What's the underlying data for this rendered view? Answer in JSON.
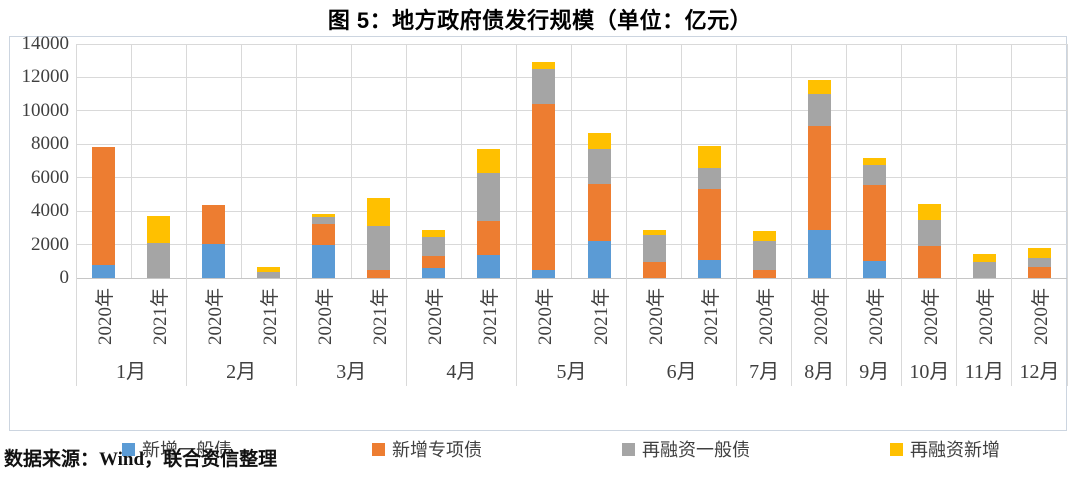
{
  "title": "图 5：地方政府债发行规模（单位：亿元）",
  "source": "数据来源：Wind，联合资信整理",
  "colors": {
    "blue": "#5B9BD5",
    "orange": "#ED7D31",
    "gray": "#A5A5A5",
    "yellow": "#FFC000",
    "gridline": "#d9d9d9",
    "axis_text": "#404040"
  },
  "chart_data": {
    "type": "bar",
    "stacked": true,
    "unit": "亿元",
    "title": "图 5：地方政府债发行规模（单位：亿元）",
    "ylim": [
      0,
      14000
    ],
    "y_ticks": [
      0,
      2000,
      4000,
      6000,
      8000,
      10000,
      12000,
      14000
    ],
    "grid": true,
    "legend_position": "bottom",
    "months": [
      {
        "label": "1月",
        "bars": 2
      },
      {
        "label": "2月",
        "bars": 2
      },
      {
        "label": "3月",
        "bars": 2
      },
      {
        "label": "4月",
        "bars": 2
      },
      {
        "label": "5月",
        "bars": 2
      },
      {
        "label": "6月",
        "bars": 2
      },
      {
        "label": "7月",
        "bars": 1
      },
      {
        "label": "8月",
        "bars": 1
      },
      {
        "label": "9月",
        "bars": 1
      },
      {
        "label": "10月",
        "bars": 1
      },
      {
        "label": "11月",
        "bars": 1
      },
      {
        "label": "12月",
        "bars": 1
      }
    ],
    "bar_years": [
      "2020年",
      "2021年",
      "2020年",
      "2021年",
      "2020年",
      "2021年",
      "2020年",
      "2021年",
      "2020年",
      "2021年",
      "2020年",
      "2021年",
      "2020年",
      "2020年",
      "2020年",
      "2020年",
      "2020年",
      "2020年"
    ],
    "series": [
      {
        "name": "新增一般债",
        "color": "#5B9BD5",
        "values": [
          750,
          0,
          2050,
          0,
          1950,
          0,
          600,
          1400,
          500,
          2200,
          0,
          1100,
          0,
          2900,
          1000,
          0,
          0,
          0
        ]
      },
      {
        "name": "新增专项债",
        "color": "#ED7D31",
        "values": [
          7100,
          0,
          2300,
          0,
          1300,
          500,
          700,
          2000,
          9900,
          3400,
          950,
          4200,
          500,
          6200,
          4550,
          1900,
          0,
          650
        ]
      },
      {
        "name": "再融资一般债",
        "color": "#A5A5A5",
        "values": [
          0,
          2100,
          0,
          350,
          400,
          2600,
          1150,
          2900,
          2100,
          2100,
          1650,
          1300,
          1700,
          1900,
          1200,
          1550,
          950,
          550
        ]
      },
      {
        "name": "再融资新增",
        "color": "#FFC000",
        "values": [
          0,
          1600,
          0,
          300,
          200,
          1700,
          450,
          1400,
          400,
          1000,
          300,
          1300,
          600,
          850,
          450,
          1000,
          500,
          600
        ]
      }
    ]
  }
}
